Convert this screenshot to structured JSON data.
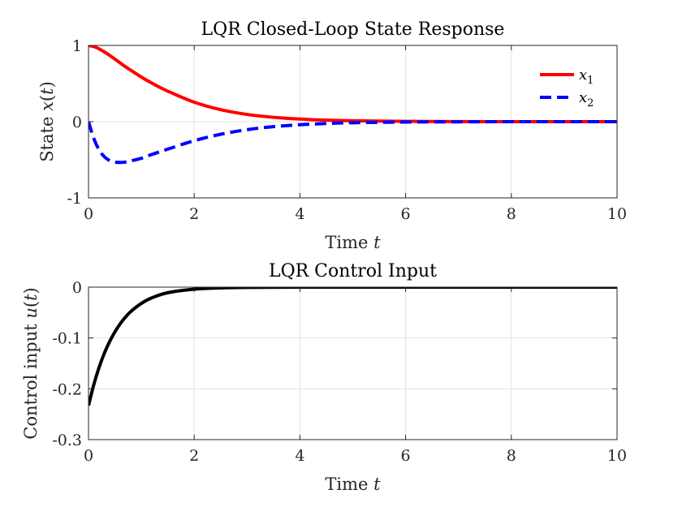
{
  "chart_data": [
    {
      "type": "line",
      "title": "LQR Closed-Loop State Response",
      "xlabel": "Time t",
      "ylabel": "State x(t)",
      "xlim": [
        0,
        10
      ],
      "ylim": [
        -1,
        1
      ],
      "xticks": [
        0,
        2,
        4,
        6,
        8,
        10
      ],
      "yticks": [
        -1,
        0,
        1
      ],
      "grid": true,
      "legend": "top-right",
      "x": [
        0,
        0.1,
        0.2,
        0.3,
        0.4,
        0.5,
        0.6,
        0.7,
        0.8,
        1.0,
        1.2,
        1.5,
        2.0,
        2.5,
        3.0,
        3.5,
        4.0,
        4.5,
        5.0,
        6.0,
        7.0,
        8.0,
        9.0,
        10.0
      ],
      "series": [
        {
          "name": "x1",
          "color": "#ff0000",
          "style": "solid",
          "values": [
            1.0,
            0.985,
            0.955,
            0.915,
            0.87,
            0.82,
            0.77,
            0.72,
            0.675,
            0.585,
            0.505,
            0.4,
            0.255,
            0.158,
            0.095,
            0.057,
            0.034,
            0.02,
            0.012,
            0.004,
            0.001,
            0.0,
            0.0,
            0.0
          ]
        },
        {
          "name": "x2",
          "color": "#0000ff",
          "style": "dashed",
          "values": [
            0.0,
            -0.22,
            -0.37,
            -0.46,
            -0.51,
            -0.53,
            -0.535,
            -0.53,
            -0.515,
            -0.48,
            -0.43,
            -0.36,
            -0.25,
            -0.165,
            -0.105,
            -0.065,
            -0.04,
            -0.024,
            -0.014,
            -0.005,
            -0.002,
            0.0,
            0.0,
            0.0
          ]
        }
      ]
    },
    {
      "type": "line",
      "title": "LQR Control Input",
      "xlabel": "Time t",
      "ylabel": "Control input u(t)",
      "xlim": [
        0,
        10
      ],
      "ylim": [
        -0.3,
        0
      ],
      "xticks": [
        0,
        2,
        4,
        6,
        8,
        10
      ],
      "yticks": [
        -0.3,
        -0.2,
        -0.1,
        0
      ],
      "grid": true,
      "x": [
        0,
        0.1,
        0.2,
        0.3,
        0.4,
        0.5,
        0.6,
        0.7,
        0.8,
        1.0,
        1.2,
        1.5,
        2.0,
        2.5,
        3.0,
        4.0,
        5.0,
        6.0,
        8.0,
        10.0
      ],
      "series": [
        {
          "color": "#000000",
          "style": "solid",
          "values": [
            -0.233,
            -0.192,
            -0.158,
            -0.13,
            -0.107,
            -0.088,
            -0.072,
            -0.059,
            -0.048,
            -0.032,
            -0.021,
            -0.011,
            -0.004,
            -0.0015,
            -0.0005,
            0.0,
            0.0,
            0.0,
            0.0,
            0.0
          ]
        }
      ]
    }
  ],
  "legend_entries": [
    {
      "label": "x",
      "subscript": "1"
    },
    {
      "label": "x",
      "subscript": "2"
    }
  ]
}
